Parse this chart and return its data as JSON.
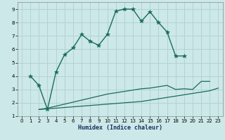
{
  "xlabel": "Humidex (Indice chaleur)",
  "bg_color": "#cce8e8",
  "grid_color": "#aacccc",
  "line_color": "#1a6b5a",
  "xlim": [
    -0.5,
    23.5
  ],
  "ylim": [
    1,
    9.5
  ],
  "xticks": [
    0,
    1,
    2,
    3,
    4,
    5,
    6,
    7,
    8,
    9,
    10,
    11,
    12,
    13,
    14,
    15,
    16,
    17,
    18,
    19,
    20,
    21,
    22,
    23
  ],
  "yticks": [
    1,
    2,
    3,
    4,
    5,
    6,
    7,
    8,
    9
  ],
  "line1_x": [
    1,
    2,
    3,
    4,
    5,
    6,
    7,
    8,
    9,
    10,
    11,
    12,
    13,
    14,
    15,
    16,
    17,
    18,
    19
  ],
  "line1_y": [
    4.0,
    3.3,
    1.5,
    4.3,
    5.6,
    6.1,
    7.1,
    6.6,
    6.3,
    7.1,
    8.85,
    9.0,
    9.0,
    8.1,
    8.8,
    8.0,
    7.3,
    5.5,
    5.5
  ],
  "line2_x": [
    2,
    3,
    4,
    5,
    6,
    7,
    8,
    9,
    10,
    11,
    12,
    13,
    14,
    15,
    16,
    17,
    18,
    19,
    20,
    21,
    22
  ],
  "line2_y": [
    1.5,
    1.6,
    1.75,
    1.9,
    2.05,
    2.2,
    2.35,
    2.5,
    2.65,
    2.75,
    2.85,
    2.95,
    3.05,
    3.1,
    3.2,
    3.3,
    3.0,
    3.05,
    3.0,
    3.6,
    3.6
  ],
  "line3_x": [
    2,
    3,
    4,
    5,
    6,
    7,
    8,
    9,
    10,
    11,
    12,
    13,
    14,
    15,
    16,
    17,
    18,
    19,
    20,
    21,
    22,
    23
  ],
  "line3_y": [
    1.5,
    1.55,
    1.6,
    1.65,
    1.7,
    1.75,
    1.8,
    1.85,
    1.9,
    1.95,
    2.0,
    2.05,
    2.1,
    2.2,
    2.3,
    2.4,
    2.5,
    2.6,
    2.7,
    2.8,
    2.9,
    3.1
  ]
}
